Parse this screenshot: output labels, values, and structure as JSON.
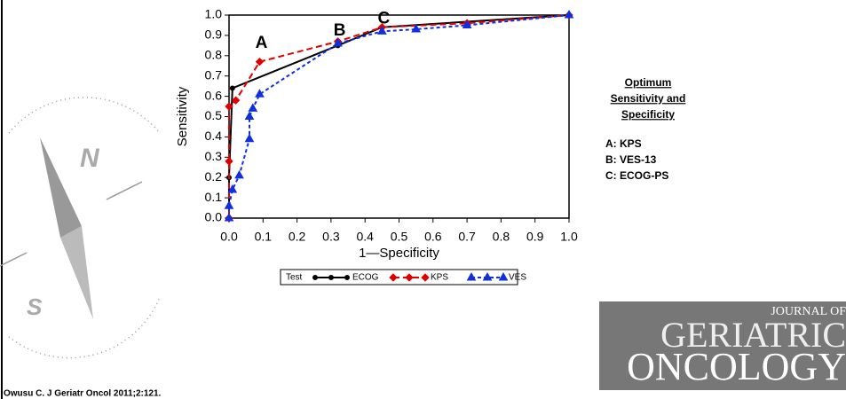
{
  "chart_data": {
    "type": "line",
    "xlabel": "1—Specificity",
    "ylabel": "Sensitivity",
    "xlim": [
      0,
      1
    ],
    "ylim": [
      0,
      1
    ],
    "xticks": [
      {
        "value": 0,
        "label": "0.0"
      },
      0.1,
      0.2,
      0.3,
      0.4,
      0.5,
      0.6,
      0.7,
      0.8,
      0.9,
      {
        "value": 1,
        "label": "1.0"
      }
    ],
    "yticks": [
      {
        "value": 0,
        "label": "0.0"
      },
      0.1,
      0.2,
      0.3,
      0.4,
      0.5,
      0.6,
      0.7,
      0.8,
      0.9,
      {
        "value": 1,
        "label": "1.0"
      }
    ],
    "legend_title": "Test",
    "series": [
      {
        "name": "ECOG",
        "color": "#000000",
        "marker": "circle",
        "dash": "solid",
        "x": [
          0,
          0,
          0.01,
          0.32,
          0.45,
          1
        ],
        "values": [
          0,
          0.2,
          0.64,
          0.85,
          0.94,
          1
        ]
      },
      {
        "name": "KPS",
        "color": "#e00000",
        "marker": "diamond",
        "dash": "dashed",
        "x": [
          0,
          0,
          0,
          0.02,
          0.09,
          0.32,
          0.45,
          0.7,
          1
        ],
        "values": [
          0,
          0.28,
          0.55,
          0.58,
          0.77,
          0.87,
          0.94,
          0.96,
          1
        ]
      },
      {
        "name": "VES",
        "color": "#1030e0",
        "marker": "triangle",
        "dash": "dotted",
        "x": [
          0,
          0,
          0.01,
          0.03,
          0.06,
          0.06,
          0.07,
          0.09,
          0.32,
          0.45,
          0.55,
          0.7,
          1
        ],
        "values": [
          0,
          0.06,
          0.14,
          0.21,
          0.39,
          0.5,
          0.54,
          0.61,
          0.86,
          0.92,
          0.93,
          0.95,
          1
        ]
      }
    ],
    "annotations": [
      {
        "text": "A",
        "x": 0.09,
        "y": 0.8
      },
      {
        "text": "B",
        "x": 0.32,
        "y": 0.86
      },
      {
        "text": "C",
        "x": 0.45,
        "y": 0.92
      }
    ]
  },
  "side_note": {
    "heading": [
      "Optimum",
      "Sensitivity and",
      "Specificity"
    ],
    "items": [
      "A: KPS",
      "B: VES-13",
      "C: ECOG-PS"
    ]
  },
  "logo": [
    "JOURNAL OF",
    "GERIATRIC",
    "ONCOLOGY"
  ],
  "citation": "Owusu C. J Geriatr Oncol 2011;2:121."
}
